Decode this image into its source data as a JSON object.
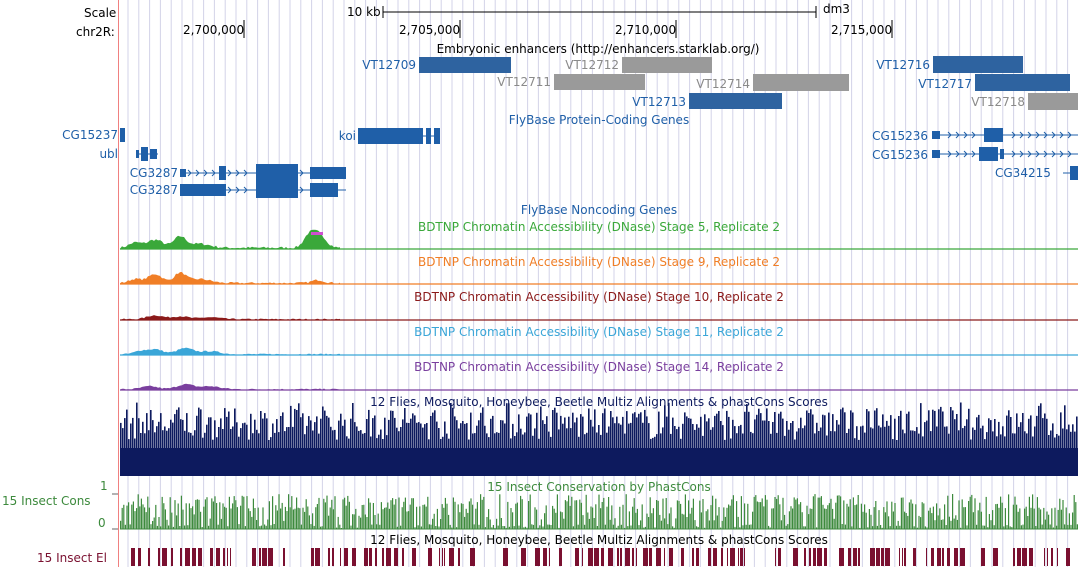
{
  "ruler": {
    "scale_label": "Scale",
    "chrom_label": "chr2R:",
    "scale_bar_text": "10 kb",
    "assembly": "dm3",
    "ticks": [
      "2,700,000",
      "2,705,000",
      "2,710,000",
      "2,715,000"
    ]
  },
  "tracks": {
    "enhancers": {
      "title": "Embryonic enhancers (http://enhancers.starklab.org/)",
      "items": [
        {
          "name": "VT12709",
          "style": "blue"
        },
        {
          "name": "VT12711",
          "style": "gray"
        },
        {
          "name": "VT12712",
          "style": "gray"
        },
        {
          "name": "VT12713",
          "style": "blue"
        },
        {
          "name": "VT12714",
          "style": "gray"
        },
        {
          "name": "VT12716",
          "style": "blue"
        },
        {
          "name": "VT12717",
          "style": "blue"
        },
        {
          "name": "VT12718",
          "style": "gray"
        }
      ]
    },
    "coding_genes": {
      "title": "FlyBase Protein-Coding Genes",
      "genes": [
        "CG15237",
        "ubl",
        "CG3287",
        "CG3287",
        "koi",
        "CG15236",
        "CG15236",
        "CG34215"
      ]
    },
    "noncoding_genes": {
      "title": "FlyBase Noncoding Genes"
    },
    "dnase": [
      {
        "title": "BDTNP Chromatin Accessibility (DNase) Stage 5, Replicate 2",
        "color": "#3aa83a"
      },
      {
        "title": "BDTNP Chromatin Accessibility (DNase) Stage 9, Replicate 2",
        "color": "#f07e26"
      },
      {
        "title": "BDTNP Chromatin Accessibility (DNase) Stage 10, Replicate 2",
        "color": "#8b1a1a"
      },
      {
        "title": "BDTNP Chromatin Accessibility (DNase) Stage 11, Replicate 2",
        "color": "#3aa6d8"
      },
      {
        "title": "BDTNP Chromatin Accessibility (DNase) Stage 14, Replicate 2",
        "color": "#7a3f9e"
      }
    ],
    "multiz": {
      "title": "12 Flies, Mosquito, Honeybee, Beetle Multiz Alignments & phastCons Scores",
      "color": "#0d1a5e"
    },
    "phastcons": {
      "title": "15 Insect Conservation by PhastCons",
      "side_label": "15 Insect Cons",
      "ymax": "1",
      "ymin": "0",
      "color": "#3d8a3d"
    },
    "elements": {
      "title": "12 Flies, Mosquito, Honeybee, Beetle Multiz Alignments & phastCons Scores",
      "side_label": "15 Insect El",
      "color": "#7a1030"
    }
  },
  "colors": {
    "gene_blue": "#1f5fa8",
    "enh_blue": "#2e63a0",
    "enh_gray": "#9a9a9a",
    "grid": "#d3d3e8",
    "left_edge": "#f08080"
  }
}
